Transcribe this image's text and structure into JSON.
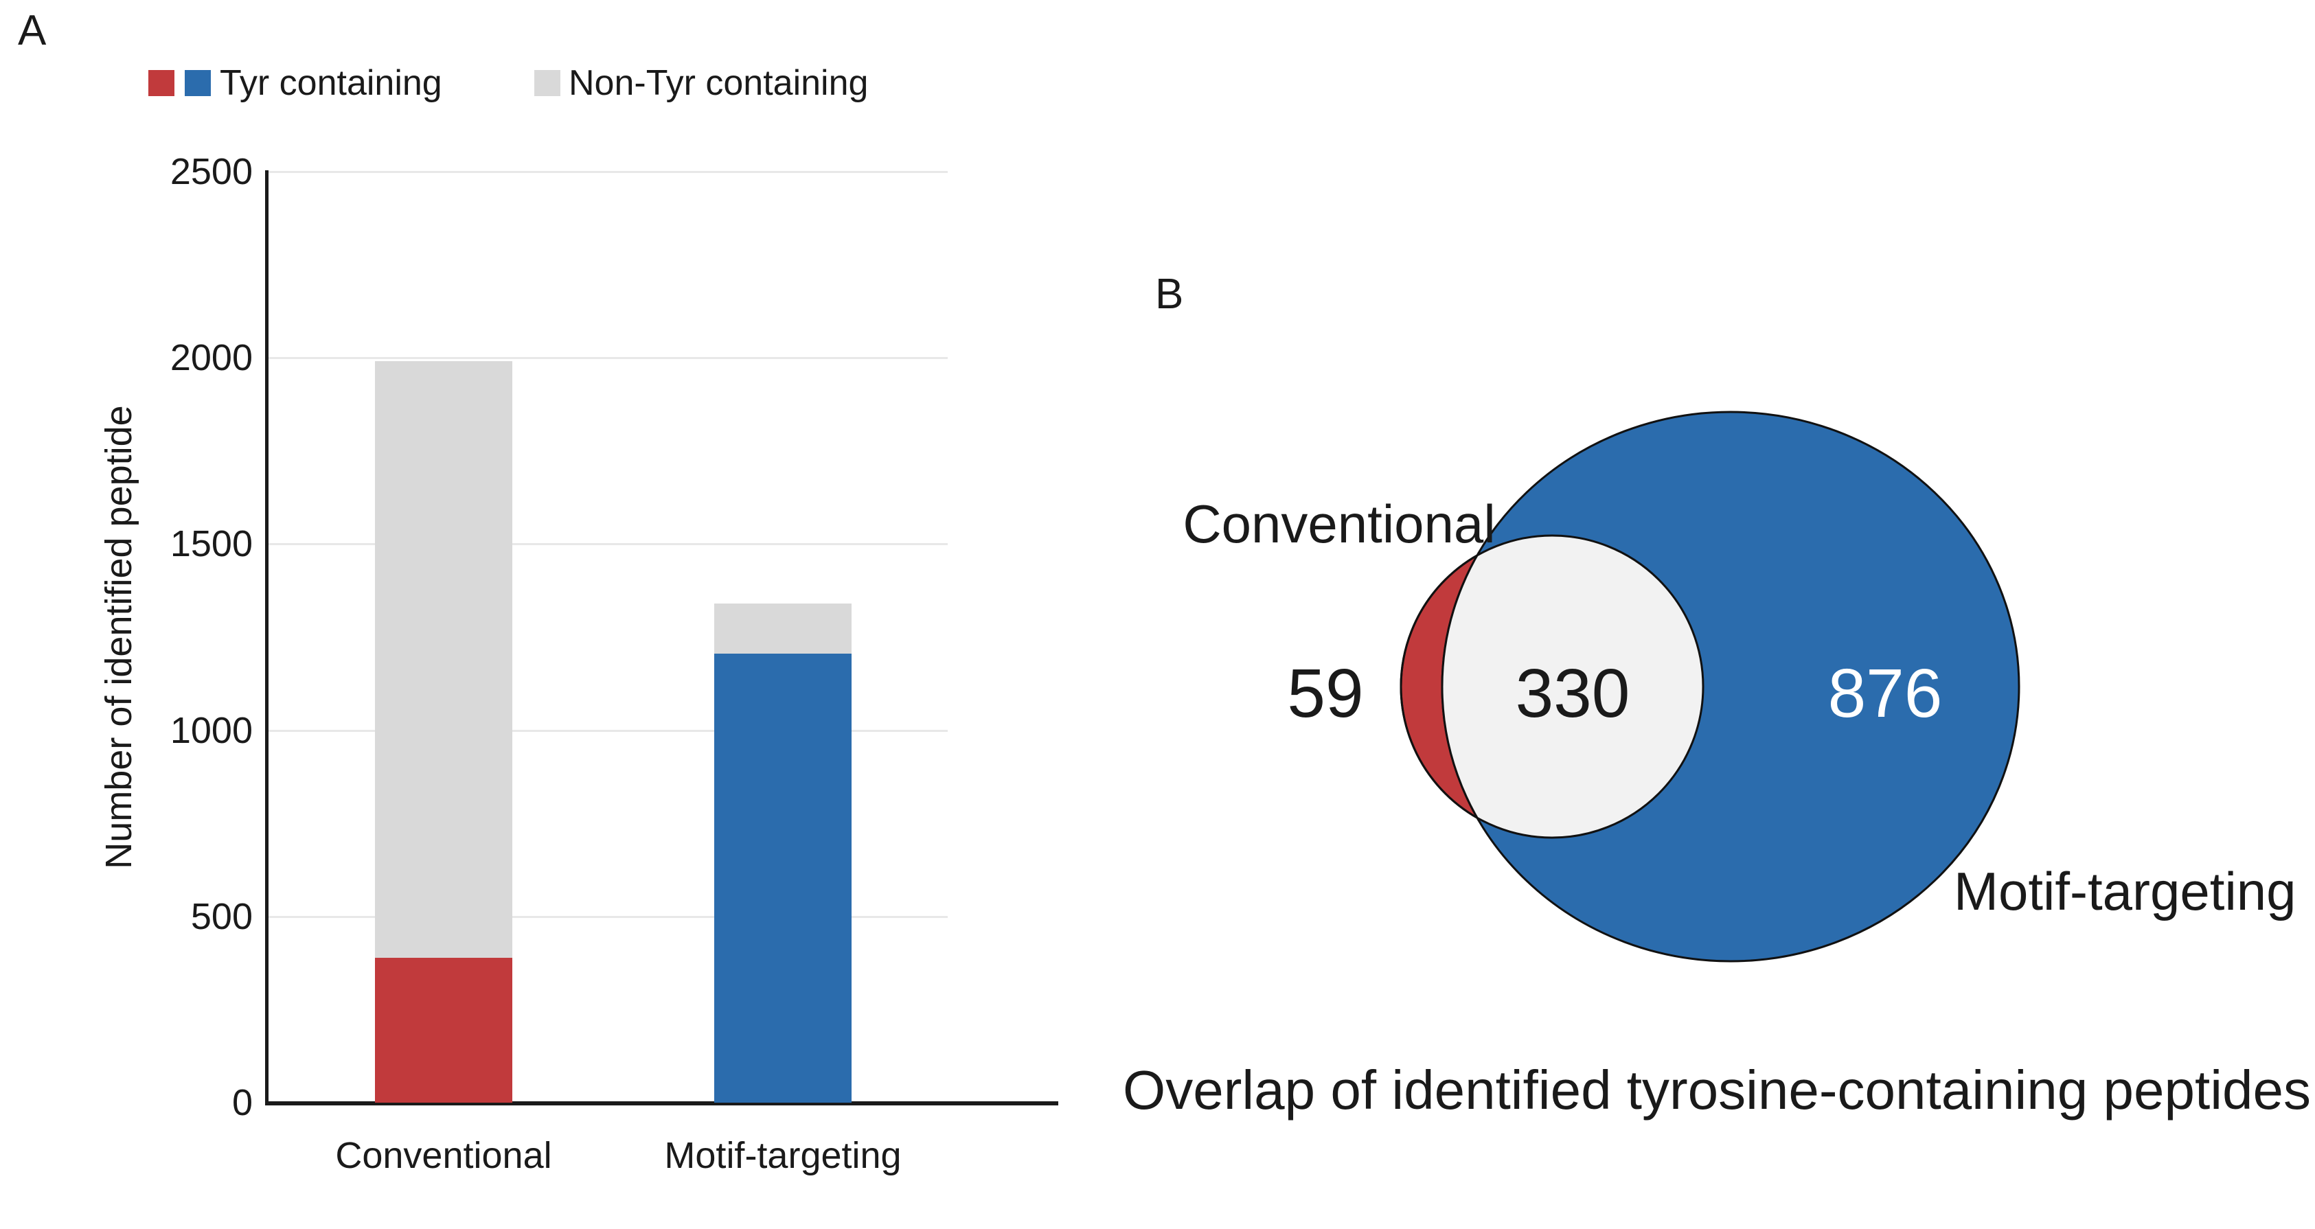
{
  "panels": {
    "a": {
      "label": "A"
    },
    "b": {
      "label": "B"
    }
  },
  "legend": {
    "items": [
      {
        "label": "Tyr containing",
        "swatches": [
          "#c13a3c",
          "#2b6cad"
        ]
      },
      {
        "label": "Non-Tyr containing",
        "swatches": [
          "#d9d9d9"
        ]
      }
    ]
  },
  "chart_data": {
    "type": "bar",
    "stacked": true,
    "title": "",
    "xlabel": "",
    "ylabel": "Number of identified peptide",
    "categories": [
      "Conventional",
      "Motif-targeting"
    ],
    "series": [
      {
        "name": "Tyr containing",
        "values": [
          389,
          1206
        ],
        "colors": [
          "#c13a3c",
          "#2b6cad"
        ]
      },
      {
        "name": "Non-Tyr containing",
        "values": [
          1602,
          134
        ],
        "colors": [
          "#d9d9d9",
          "#d9d9d9"
        ]
      }
    ],
    "totals": [
      1991,
      1340
    ],
    "ylim": [
      0,
      2500
    ],
    "yticks": [
      0,
      500,
      1000,
      1500,
      2000,
      2500
    ],
    "grid": true,
    "legend_position": "top"
  },
  "venn": {
    "left_label": "Conventional",
    "right_label": "Motif-targeting",
    "left_only": "59",
    "overlap": "330",
    "right_only": "876",
    "caption": "Overlap of identified tyrosine-containing peptides",
    "colors": {
      "left": "#c13a3c",
      "right": "#2b6cad",
      "overlap": "#f2f2f2",
      "outline": "#111111"
    }
  }
}
